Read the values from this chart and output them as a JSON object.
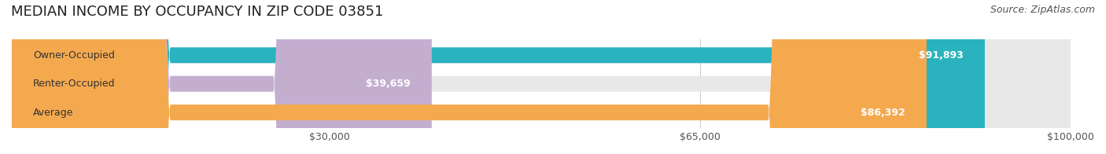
{
  "title": "MEDIAN INCOME BY OCCUPANCY IN ZIP CODE 03851",
  "source": "Source: ZipAtlas.com",
  "categories": [
    "Owner-Occupied",
    "Renter-Occupied",
    "Average"
  ],
  "values": [
    91893,
    39659,
    86392
  ],
  "bar_colors": [
    "#2ab3bf",
    "#c4aed0",
    "#f5a94e"
  ],
  "bar_bg_color": "#f0f0f0",
  "label_color": "#ffffff",
  "xlim": [
    0,
    100000
  ],
  "xticks": [
    30000,
    65000,
    100000
  ],
  "xtick_labels": [
    "$30,000",
    "$65,000",
    "$100,000"
  ],
  "title_fontsize": 13,
  "source_fontsize": 9,
  "tick_fontsize": 9,
  "bar_label_fontsize": 9,
  "cat_label_fontsize": 9,
  "figsize": [
    14.06,
    1.96
  ],
  "dpi": 100
}
